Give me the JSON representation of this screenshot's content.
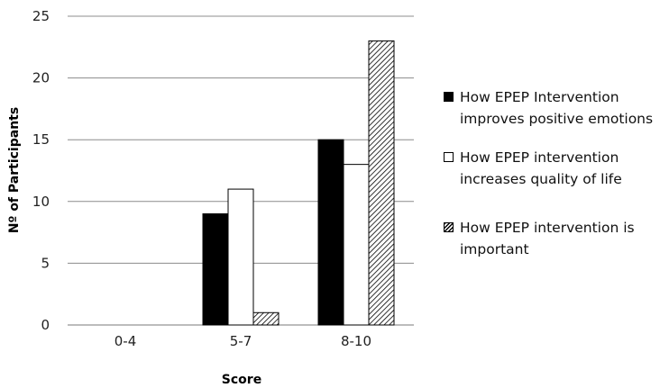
{
  "chart_data": {
    "type": "bar",
    "title": "",
    "xlabel": "Score",
    "ylabel": "Nº of Participants",
    "categories": [
      "0-4",
      "5-7",
      "8-10"
    ],
    "ylim": [
      0,
      25
    ],
    "yticks": [
      0,
      5,
      10,
      15,
      20,
      25
    ],
    "grid": true,
    "legend_position": "right",
    "series": [
      {
        "name": "How EPEP Intervention improves positive emotions",
        "values": [
          0,
          9,
          15
        ],
        "fill": "solid-black"
      },
      {
        "name": "How EPEP intervention increases quality of life",
        "values": [
          0,
          11,
          13
        ],
        "fill": "white"
      },
      {
        "name": "How EPEP intervention is important",
        "values": [
          0,
          1,
          23
        ],
        "fill": "diagonal-hatch"
      }
    ],
    "colors": {
      "series_1": "#000000",
      "series_2": "#ffffff",
      "series_3": "hatched #000000",
      "grid": "#8c8c8c"
    }
  }
}
